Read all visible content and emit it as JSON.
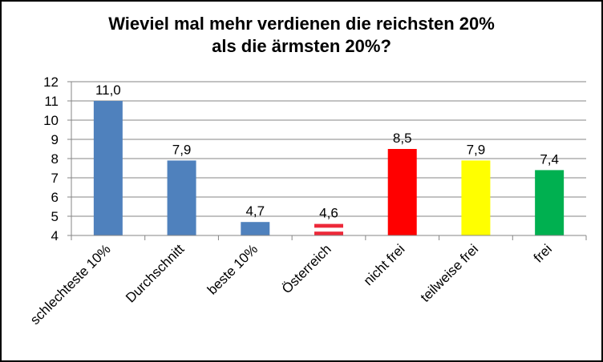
{
  "chart_data": {
    "type": "bar",
    "title_lines": [
      "Wieviel mal mehr verdienen die reichsten 20%",
      "als die ärmsten 20%?"
    ],
    "categories": [
      "schlechteste 10%",
      "Durchschnitt",
      "beste 10%",
      "Österreich",
      "nicht frei",
      "teilweise frei",
      "frei"
    ],
    "values": [
      11.0,
      7.9,
      4.7,
      4.6,
      8.5,
      7.9,
      7.4
    ],
    "data_labels": [
      "11,0",
      "7,9",
      "4,7",
      "4,6",
      "8,5",
      "7,9",
      "7,4"
    ],
    "colors": [
      "#4F81BD",
      "#4F81BD",
      "#4F81BD",
      "austrian-flag",
      "#FF0000",
      "#FFFF00",
      "#00B050"
    ],
    "flag_colors": {
      "red": "#ED2939",
      "white": "#FFFFFF"
    },
    "xlabel": "",
    "ylabel": "",
    "ylim": [
      4,
      12
    ],
    "yticks": [
      4,
      5,
      6,
      7,
      8,
      9,
      10,
      11,
      12
    ],
    "grid": true,
    "legend": "none"
  }
}
